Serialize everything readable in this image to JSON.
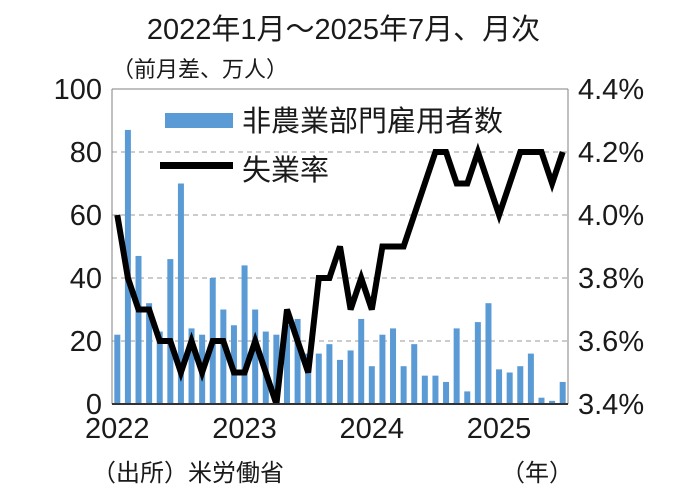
{
  "title": "2022年1月～2025年7月、月次",
  "left_axis_unit": "（前月差、万人）",
  "x_axis_unit": "（年）",
  "source": "（出所）米労働省",
  "legend": {
    "bar_label": "非農業部門雇用者数",
    "line_label": "失業率"
  },
  "colors": {
    "bar": "#5B9BD5",
    "line": "#000000",
    "grid": "#999999",
    "frame": "#808080",
    "axis": "#333333",
    "text": "#1a1a1a"
  },
  "chart_data": {
    "type": "bar+line combo",
    "title": "2022年1月～2025年7月、月次",
    "x_range": "2022-01 to 2025-07, monthly",
    "year_ticks": [
      "2022",
      "2023",
      "2024",
      "2025"
    ],
    "months": [
      "2022-01",
      "2022-02",
      "2022-03",
      "2022-04",
      "2022-05",
      "2022-06",
      "2022-07",
      "2022-08",
      "2022-09",
      "2022-10",
      "2022-11",
      "2022-12",
      "2023-01",
      "2023-02",
      "2023-03",
      "2023-04",
      "2023-05",
      "2023-06",
      "2023-07",
      "2023-08",
      "2023-09",
      "2023-10",
      "2023-11",
      "2023-12",
      "2024-01",
      "2024-02",
      "2024-03",
      "2024-04",
      "2024-05",
      "2024-06",
      "2024-07",
      "2024-08",
      "2024-09",
      "2024-10",
      "2024-11",
      "2024-12",
      "2025-01",
      "2025-02",
      "2025-03",
      "2025-04",
      "2025-05",
      "2025-06",
      "2025-07"
    ],
    "series": [
      {
        "name": "非農業部門雇用者数",
        "type": "bar",
        "axis": "left",
        "unit": "万人（前月差）",
        "values": [
          22,
          87,
          47,
          32,
          23,
          46,
          70,
          24,
          22,
          40,
          30,
          25,
          44,
          30,
          23,
          22,
          25,
          27,
          16,
          16,
          19,
          14,
          17,
          27,
          12,
          22,
          24,
          12,
          19,
          9,
          9,
          7,
          24,
          4,
          26,
          32,
          11,
          10,
          12,
          16,
          2,
          1,
          7
        ]
      },
      {
        "name": "失業率",
        "type": "line",
        "axis": "right",
        "unit": "%",
        "values": [
          4.0,
          3.8,
          3.7,
          3.7,
          3.6,
          3.6,
          3.5,
          3.6,
          3.5,
          3.6,
          3.6,
          3.5,
          3.5,
          3.6,
          3.5,
          3.4,
          3.7,
          3.6,
          3.5,
          3.8,
          3.8,
          3.9,
          3.7,
          3.8,
          3.7,
          3.9,
          3.9,
          3.9,
          4.0,
          4.1,
          4.2,
          4.2,
          4.1,
          4.1,
          4.2,
          4.1,
          4.0,
          4.1,
          4.2,
          4.2,
          4.2,
          4.1,
          4.2
        ]
      }
    ],
    "left_axis": {
      "label": "（前月差、万人）",
      "ticks": [
        0,
        20,
        40,
        60,
        80,
        100
      ],
      "min": 0,
      "max": 100
    },
    "right_axis": {
      "label": "失業率（%）",
      "ticks": [
        "3.4%",
        "3.6%",
        "3.8%",
        "4.0%",
        "4.2%",
        "4.4%"
      ],
      "min": 3.4,
      "max": 4.4
    },
    "grid": "horizontal dashed",
    "legend_position": "inside top-left"
  }
}
